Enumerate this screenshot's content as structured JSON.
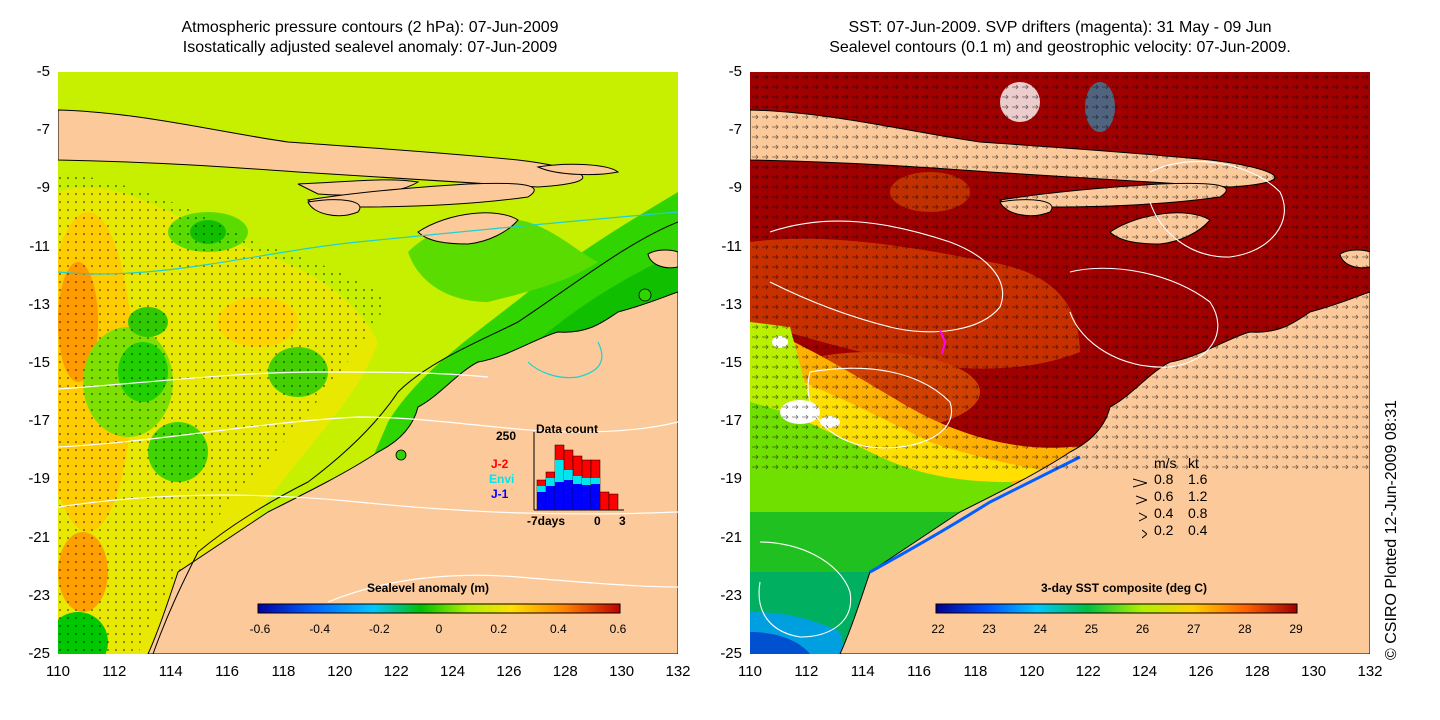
{
  "left_panel": {
    "title_line1": "Atmospheric pressure contours (2 hPa): 07-Jun-2009",
    "title_line2": "Isostatically adjusted sealevel anomaly: 07-Jun-2009",
    "colorbar_title": "Sealevel anomaly (m)",
    "colorbar_ticks": [
      "-0.6",
      "-0.4",
      "-0.2",
      "0",
      "0.2",
      "0.4",
      "0.6"
    ],
    "inset": {
      "title": "Data count",
      "y_max": "250",
      "legend": [
        {
          "label": "J-2",
          "color": "#ff0000"
        },
        {
          "label": "Envi",
          "color": "#00e5ee"
        },
        {
          "label": "J-1",
          "color": "#0000ff"
        }
      ],
      "x_labels": [
        "-7days",
        "0",
        "3"
      ]
    }
  },
  "right_panel": {
    "title_line1": "SST: 07-Jun-2009. SVP drifters (magenta): 31 May - 09 Jun",
    "title_line2": "Sealevel contours (0.1 m) and geostrophic velocity: 07-Jun-2009.",
    "colorbar_title": "3-day SST composite (deg C)",
    "colorbar_ticks": [
      "22",
      "23",
      "24",
      "25",
      "26",
      "27",
      "28",
      "29"
    ],
    "velocity_legend": {
      "header_ms": "m/s",
      "header_kt": "kt",
      "rows": [
        {
          "ms": "0.8",
          "kt": "1.6"
        },
        {
          "ms": "0.6",
          "kt": "1.2"
        },
        {
          "ms": "0.4",
          "kt": "0.8"
        },
        {
          "ms": "0.2",
          "kt": "0.4"
        }
      ]
    }
  },
  "axes": {
    "lat_ticks": [
      "-5",
      "-7",
      "-9",
      "-11",
      "-13",
      "-15",
      "-17",
      "-19",
      "-21",
      "-23",
      "-25"
    ],
    "lon_ticks": [
      "110",
      "112",
      "114",
      "116",
      "118",
      "120",
      "122",
      "124",
      "126",
      "128",
      "130",
      "132"
    ]
  },
  "credit": "© CSIRO Plotted 12-Jun-2009 08:31",
  "colors": {
    "land": "#fcc99a",
    "sla_ramp": [
      "#0000a0",
      "#0060ff",
      "#00c8ff",
      "#00c000",
      "#b0f000",
      "#ffe000",
      "#ff8000",
      "#c00000"
    ],
    "sst_ramp": [
      "#000090",
      "#0050ff",
      "#00c8ff",
      "#00c040",
      "#b0f000",
      "#ffd000",
      "#ff6000",
      "#a00000"
    ]
  }
}
